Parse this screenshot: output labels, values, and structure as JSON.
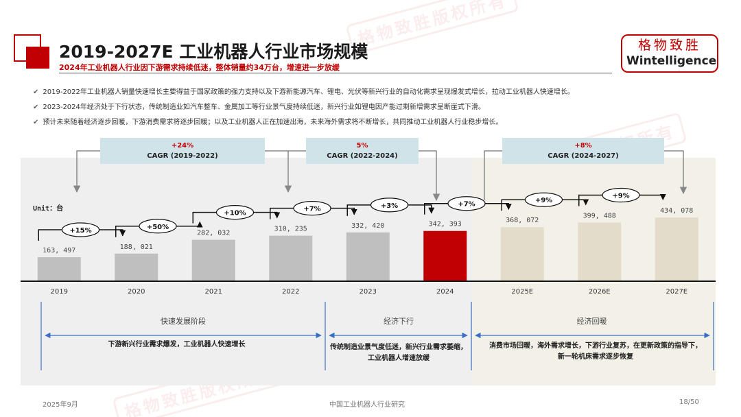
{
  "header": {
    "title": "2019-2027E 工业机器人行业市场规模",
    "subtitle": "2024年工业机器人行业因下游需求持续低迷，整体销量约34万台，增速进一步放缓",
    "brand_cn": "格物致胜",
    "brand_en": "Wintelligence"
  },
  "bullets": [
    "2019-2022年工业机器人销量快速增长主要得益于国家政策的强力支持以及下游新能源汽车、锂电、光伏等新兴行业的自动化需求呈现爆发式增长，拉动工业机器人快速增长。",
    "2023-2024年经济处于下行状态，传统制造业如汽车整车、金属加工等行业景气度持续低迷，新兴行业如锂电因产能过剩新增需求呈断崖式下滑。",
    "预计未来随着经济逐步回暖，下游消费需求将逐步回暖；以及工业机器人正在加速出海，未来海外需求将不断增长，共同推动工业机器人行业稳步增长。"
  ],
  "cagr": [
    {
      "rate": "+24%",
      "label": "CAGR (2019-2022)"
    },
    {
      "rate": "5%",
      "label": "CAGR (2022-2024)"
    },
    {
      "rate": "+8%",
      "label": "CAGR (2024-2027)"
    }
  ],
  "chart_data": {
    "type": "bar",
    "unit_label": "Unit：台",
    "categories": [
      "2019",
      "2020",
      "2021",
      "2022",
      "2023",
      "2024",
      "2025E",
      "2026E",
      "2027E"
    ],
    "values": [
      163497,
      188021,
      282032,
      310235,
      332420,
      342393,
      368072,
      399488,
      434078
    ],
    "value_labels": [
      "163, 497",
      "188, 021",
      "282, 032",
      "310, 235",
      "332, 420",
      "342, 393",
      "368, 072",
      "399, 488",
      "434, 078"
    ],
    "growth_labels": [
      "+15%",
      "+50%",
      "+10%",
      "+7%",
      "+3%",
      "+7%",
      "+9%",
      "+9%"
    ],
    "colors": {
      "historical": "#bfbfbf",
      "current": "#c00000",
      "forecast": "#e4dccb"
    },
    "highlight_index": 5
  },
  "phases": [
    {
      "title": "快速发展阶段",
      "desc": "下游新兴行业需求爆发，工业机器人快速增长"
    },
    {
      "title": "经济下行",
      "desc": "传统制造业景气度低迷，新兴行业需求萎缩，工业机器人增速放缓"
    },
    {
      "title": "经济回暖",
      "desc": "消费市场回暖，海外需求增长，下游行业复苏，在更新政策的指导下，新一轮机床需求逐步恢复"
    }
  ],
  "footer": {
    "date": "2025年9月",
    "center": "中国工业机器人行业研究",
    "page": "18/50"
  },
  "watermark": "格物致胜版权所有"
}
